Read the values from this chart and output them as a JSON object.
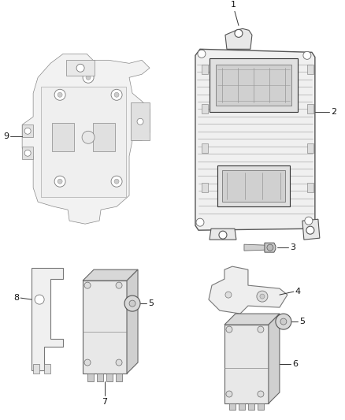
{
  "background_color": "#ffffff",
  "line_color": "#555555",
  "dark_color": "#333333",
  "light_gray": "#cccccc",
  "mid_gray": "#aaaaaa",
  "label_color": "#111111",
  "fig_width": 4.38,
  "fig_height": 5.33,
  "dpi": 100
}
